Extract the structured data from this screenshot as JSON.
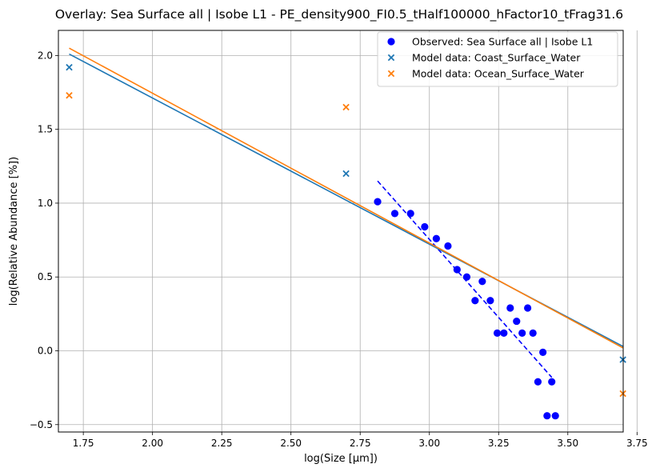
{
  "chart_data": {
    "type": "scatter",
    "title": "Overlay: Sea Surface all | Isobe L1 - PE_density900_FI0.5_tHalf100000_hFactor10_tFrag31.6",
    "xlabel": "log(Size [μm])",
    "ylabel": "log(Relative Abundance [%])",
    "xlim": [
      1.66,
      3.7
    ],
    "ylim": [
      -0.55,
      2.17
    ],
    "x_ticks": [
      1.75,
      2.0,
      2.25,
      2.5,
      2.75,
      3.0,
      3.25,
      3.5,
      3.75
    ],
    "x_tick_labels": [
      "1.75",
      "2.00",
      "2.25",
      "2.50",
      "2.75",
      "3.00",
      "3.25",
      "3.50",
      "3.75"
    ],
    "y_ticks": [
      -0.5,
      0.0,
      0.5,
      1.0,
      1.5,
      2.0
    ],
    "y_tick_labels": [
      "−0.5",
      "0.0",
      "0.5",
      "1.0",
      "1.5",
      "2.0"
    ],
    "grid": true,
    "legend_position": "top-right",
    "series": [
      {
        "name": "Observed: Sea Surface all | Isobe L1",
        "kind": "scatter",
        "marker": "circle",
        "color": "#0000ff",
        "points": [
          [
            2.813,
            1.01
          ],
          [
            2.875,
            0.93
          ],
          [
            2.932,
            0.93
          ],
          [
            2.983,
            0.84
          ],
          [
            3.025,
            0.76
          ],
          [
            3.067,
            0.71
          ],
          [
            3.1,
            0.55
          ],
          [
            3.135,
            0.5
          ],
          [
            3.165,
            0.34
          ],
          [
            3.191,
            0.47
          ],
          [
            3.22,
            0.34
          ],
          [
            3.245,
            0.12
          ],
          [
            3.269,
            0.12
          ],
          [
            3.292,
            0.29
          ],
          [
            3.315,
            0.2
          ],
          [
            3.335,
            0.12
          ],
          [
            3.355,
            0.29
          ],
          [
            3.374,
            0.12
          ],
          [
            3.392,
            -0.21
          ],
          [
            3.41,
            -0.01
          ],
          [
            3.425,
            -0.44
          ],
          [
            3.442,
            -0.21
          ],
          [
            3.455,
            -0.44
          ]
        ]
      },
      {
        "name": "Model data: Coast_Surface_Water",
        "kind": "scatter",
        "marker": "x",
        "color": "#1f77b4",
        "points": [
          [
            1.699,
            1.92
          ],
          [
            2.699,
            1.2
          ],
          [
            3.699,
            -0.06
          ]
        ]
      },
      {
        "name": "Model data: Ocean_Surface_Water",
        "kind": "scatter",
        "marker": "x",
        "color": "#ff7f0e",
        "points": [
          [
            1.699,
            1.73
          ],
          [
            2.699,
            1.65
          ],
          [
            3.699,
            -0.29
          ]
        ]
      }
    ],
    "fit_lines": [
      {
        "color": "#0000ff",
        "style": "dashed",
        "points": [
          [
            2.813,
            1.15
          ],
          [
            3.442,
            -0.18
          ]
        ]
      },
      {
        "color": "#1f77b4",
        "style": "solid",
        "points": [
          [
            1.699,
            2.01
          ],
          [
            3.699,
            0.03
          ]
        ]
      },
      {
        "color": "#ff7f0e",
        "style": "solid",
        "points": [
          [
            1.699,
            2.05
          ],
          [
            3.699,
            0.02
          ]
        ]
      }
    ]
  }
}
